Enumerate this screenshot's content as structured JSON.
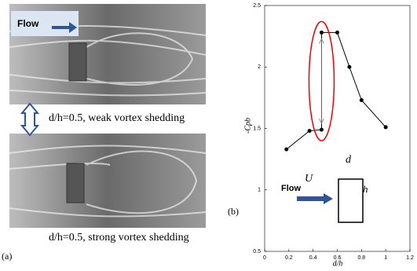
{
  "panel_a": {
    "label": "(a)",
    "flow": "Flow",
    "top_caption": "d/h=0.5, weak vortex shedding",
    "bottom_caption": "d/h=0.5, strong vortex shedding"
  },
  "chart_data": {
    "type": "line",
    "panel_label": "(b)",
    "x_label": "d/h",
    "y_label": "-Cpb",
    "x": [
      0.18,
      0.37,
      0.47,
      0.47,
      0.6,
      0.7,
      0.8,
      1.0
    ],
    "values": [
      1.33,
      1.48,
      1.49,
      2.28,
      2.28,
      2.0,
      1.73,
      1.51
    ],
    "color": "#000000",
    "xlim": [
      0,
      1.2
    ],
    "xticks": [
      0,
      0.2,
      0.4,
      0.6,
      0.8,
      1,
      1.2
    ],
    "ylim": [
      0.5,
      2.5
    ],
    "yticks": [
      0.5,
      1,
      1.5,
      2,
      2.5
    ],
    "grid": false,
    "inset": {
      "d": "d",
      "U": "U",
      "flow": "Flow",
      "h": "h"
    }
  }
}
